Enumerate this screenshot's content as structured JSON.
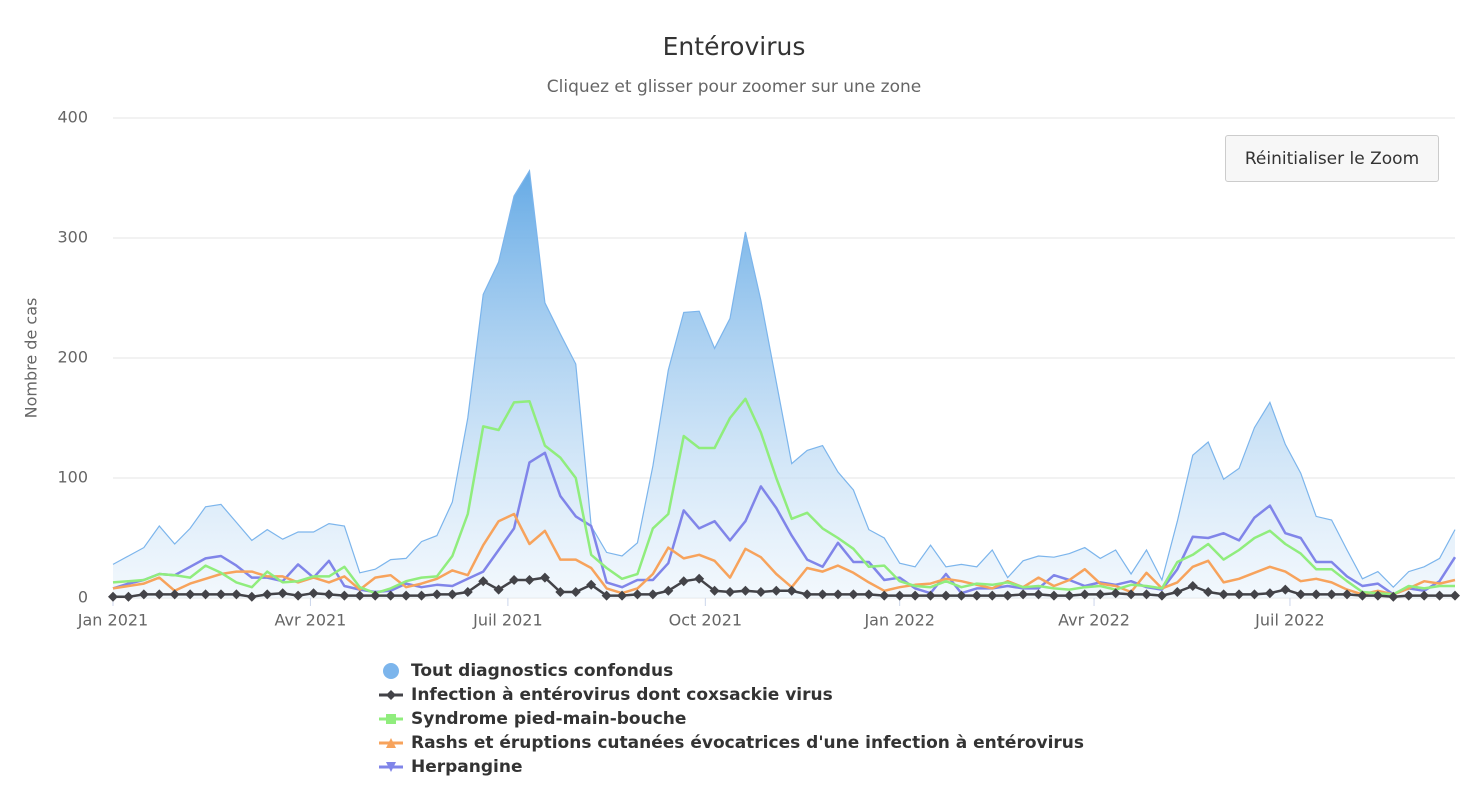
{
  "chart_data": {
    "type": "line",
    "title": "Entérovirus",
    "subtitle": "Cliquez et glisser pour zoomer sur une zone",
    "y_axis_label": "Nombre de cas",
    "categories": [
      null,
      null,
      null,
      null,
      null,
      null,
      null,
      null,
      null,
      null,
      null,
      null,
      null,
      null,
      null,
      null,
      null,
      null,
      null,
      null,
      null,
      null,
      null,
      null,
      null,
      null,
      null,
      null,
      null,
      null,
      null,
      null,
      null,
      null,
      null,
      null,
      null,
      null,
      null,
      null,
      null,
      null,
      null,
      null,
      null,
      null,
      null,
      null,
      null,
      null,
      null,
      null,
      null,
      null,
      null,
      null,
      null,
      null,
      null,
      null,
      null,
      null,
      null,
      null,
      null,
      null,
      null,
      null,
      null,
      null,
      null,
      null,
      null,
      null,
      null,
      null,
      null,
      null,
      null,
      null,
      null,
      null,
      null,
      null,
      null,
      null,
      null,
      null
    ],
    "xlim": [
      0,
      87
    ],
    "xticks": [
      {
        "value": 0,
        "label": "Jan 2021"
      },
      {
        "value": 12.8,
        "label": "Avr 2021"
      },
      {
        "value": 25.6,
        "label": "Juil 2021"
      },
      {
        "value": 38.4,
        "label": "Oct 2021"
      },
      {
        "value": 51,
        "label": "Jan 2022"
      },
      {
        "value": 63.6,
        "label": "Avr 2022"
      },
      {
        "value": 76.3,
        "label": "Juil 2022"
      }
    ],
    "ylim": [
      0,
      400
    ],
    "yticks": [
      0,
      100,
      200,
      300,
      400
    ],
    "grid": true,
    "series": [
      {
        "name": "Tout diagnostics confondus",
        "color": "#7cb5ec",
        "series_type": "area",
        "symbol": "circle",
        "show_markers": false,
        "values": [
          28,
          35,
          42,
          60,
          45,
          58,
          76,
          78,
          63,
          48,
          57,
          49,
          55,
          55,
          62,
          60,
          21,
          24,
          32,
          33,
          47,
          52,
          80,
          150,
          253,
          280,
          335,
          356,
          246,
          220,
          195,
          60,
          38,
          35,
          46,
          110,
          190,
          238,
          239,
          208,
          233,
          305,
          248,
          180,
          112,
          123,
          127,
          105,
          90,
          57,
          50,
          29,
          26,
          44,
          26,
          28,
          26,
          40,
          17,
          31,
          35,
          34,
          37,
          42,
          33,
          40,
          20,
          40,
          15,
          64,
          119,
          130,
          99,
          108,
          142,
          163,
          128,
          104,
          68,
          65,
          40,
          16,
          22,
          9,
          22,
          26,
          33,
          57
        ]
      },
      {
        "name": "Infection à entérovirus dont coxsackie virus",
        "color": "#434348",
        "series_type": "line",
        "symbol": "diamond",
        "show_markers": true,
        "values": [
          1,
          1,
          3,
          3,
          3,
          3,
          3,
          3,
          3,
          1,
          3,
          4,
          2,
          4,
          3,
          2,
          2,
          2,
          2,
          2,
          2,
          3,
          3,
          5,
          14,
          7,
          15,
          15,
          17,
          5,
          5,
          11,
          2,
          2,
          3,
          3,
          6,
          14,
          16,
          6,
          5,
          6,
          5,
          6,
          6,
          3,
          3,
          3,
          3,
          3,
          2,
          2,
          2,
          2,
          2,
          2,
          2,
          2,
          2,
          3,
          3,
          2,
          2,
          3,
          3,
          4,
          3,
          3,
          2,
          5,
          10,
          5,
          3,
          3,
          3,
          4,
          7,
          3,
          3,
          3,
          3,
          2,
          2,
          1,
          2,
          2,
          2,
          2
        ]
      },
      {
        "name": "Syndrome pied-main-bouche",
        "color": "#90ed7d",
        "series_type": "line",
        "symbol": "square",
        "show_markers": false,
        "values": [
          13,
          14,
          15,
          20,
          19,
          17,
          27,
          21,
          13,
          9,
          22,
          13,
          14,
          18,
          18,
          26,
          9,
          4,
          8,
          14,
          17,
          18,
          35,
          70,
          143,
          140,
          163,
          164,
          127,
          117,
          100,
          36,
          25,
          16,
          20,
          58,
          70,
          135,
          125,
          125,
          150,
          166,
          138,
          100,
          66,
          71,
          58,
          50,
          41,
          26,
          27,
          14,
          10,
          9,
          14,
          9,
          12,
          11,
          13,
          9,
          10,
          8,
          7,
          9,
          10,
          7,
          11,
          10,
          8,
          30,
          36,
          45,
          32,
          40,
          50,
          56,
          45,
          37,
          24,
          24,
          14,
          5,
          4,
          3,
          10,
          8,
          10,
          10
        ]
      },
      {
        "name": "Rashs et éruptions cutanées évocatrices d'une infection à entérovirus",
        "color": "#f7a35c",
        "series_type": "line",
        "symbol": "triangle",
        "show_markers": false,
        "values": [
          8,
          10,
          12,
          17,
          6,
          12,
          16,
          20,
          22,
          22,
          18,
          18,
          13,
          17,
          13,
          18,
          7,
          17,
          19,
          9,
          12,
          16,
          23,
          19,
          44,
          64,
          70,
          45,
          56,
          32,
          32,
          25,
          8,
          4,
          8,
          20,
          42,
          33,
          36,
          31,
          17,
          41,
          34,
          20,
          9,
          25,
          22,
          27,
          21,
          13,
          6,
          9,
          11,
          12,
          16,
          14,
          11,
          8,
          14,
          9,
          17,
          10,
          15,
          24,
          12,
          10,
          5,
          21,
          8,
          13,
          26,
          31,
          13,
          16,
          21,
          26,
          22,
          14,
          16,
          13,
          7,
          3,
          6,
          3,
          8,
          14,
          12,
          15
        ]
      },
      {
        "name": "Herpangine",
        "color": "#8085e9",
        "series_type": "line",
        "symbol": "triangle-down",
        "show_markers": false,
        "values": [
          8,
          12,
          15,
          20,
          19,
          26,
          33,
          35,
          27,
          17,
          17,
          14,
          28,
          17,
          31,
          10,
          7,
          5,
          6,
          12,
          9,
          11,
          10,
          16,
          22,
          40,
          58,
          113,
          121,
          85,
          68,
          60,
          13,
          9,
          15,
          15,
          29,
          73,
          58,
          64,
          48,
          64,
          93,
          75,
          52,
          32,
          26,
          46,
          30,
          30,
          15,
          17,
          8,
          4,
          20,
          4,
          8,
          8,
          10,
          8,
          8,
          19,
          15,
          10,
          13,
          11,
          14,
          9,
          7,
          24,
          51,
          50,
          54,
          48,
          67,
          77,
          54,
          50,
          30,
          30,
          18,
          10,
          12,
          3,
          8,
          6,
          14,
          34
        ]
      }
    ]
  },
  "reset_button": "Réinitialiser le Zoom"
}
